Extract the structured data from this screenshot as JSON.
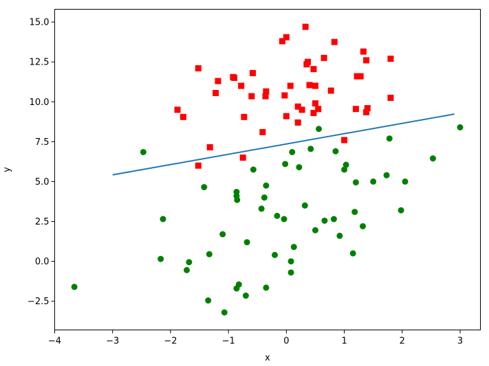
{
  "chart_data": {
    "type": "scatter",
    "title": "",
    "xlabel": "x",
    "ylabel": "y",
    "xlim": [
      -4,
      3.35
    ],
    "ylim": [
      -4.3,
      15.8
    ],
    "xticks": [
      -4,
      -3,
      -2,
      -1,
      0,
      1,
      2,
      3
    ],
    "yticks": [
      -2.5,
      0.0,
      2.5,
      5.0,
      7.5,
      10.0,
      12.5,
      15.0
    ],
    "ytick_labels": [
      "−2.5",
      "0.0",
      "2.5",
      "5.0",
      "7.5",
      "10.0",
      "12.5",
      "15.0"
    ],
    "xtick_labels": [
      "−4",
      "−3",
      "−2",
      "−1",
      "0",
      "1",
      "2",
      "3"
    ],
    "grid": false,
    "series": [
      {
        "marker": "square",
        "color": "#ff0000",
        "points": [
          [
            -1.52,
            12.1
          ],
          [
            -1.18,
            11.3
          ],
          [
            -1.22,
            10.55
          ],
          [
            -0.92,
            11.55
          ],
          [
            -0.9,
            11.5
          ],
          [
            -0.58,
            11.8
          ],
          [
            -0.78,
            11.0
          ],
          [
            -0.6,
            10.35
          ],
          [
            -0.35,
            10.65
          ],
          [
            -0.36,
            10.35
          ],
          [
            -1.88,
            9.5
          ],
          [
            -1.78,
            9.05
          ],
          [
            -0.73,
            9.05
          ],
          [
            -0.41,
            8.1
          ],
          [
            -1.32,
            7.15
          ],
          [
            -1.52,
            6.0
          ],
          [
            -0.75,
            6.5
          ],
          [
            -0.07,
            13.8
          ],
          [
            0.0,
            14.05
          ],
          [
            0.33,
            14.7
          ],
          [
            0.35,
            12.35
          ],
          [
            0.37,
            12.5
          ],
          [
            0.47,
            12.05
          ],
          [
            0.65,
            12.75
          ],
          [
            0.83,
            13.75
          ],
          [
            1.33,
            13.15
          ],
          [
            1.38,
            12.6
          ],
          [
            1.22,
            11.6
          ],
          [
            1.28,
            11.6
          ],
          [
            1.8,
            12.7
          ],
          [
            0.07,
            11.0
          ],
          [
            -0.03,
            10.4
          ],
          [
            0.4,
            11.05
          ],
          [
            0.5,
            11.0
          ],
          [
            0.77,
            10.7
          ],
          [
            0.2,
            9.7
          ],
          [
            0.27,
            9.5
          ],
          [
            0.5,
            9.9
          ],
          [
            0.55,
            9.55
          ],
          [
            0.47,
            9.3
          ],
          [
            0.0,
            9.1
          ],
          [
            0.2,
            8.7
          ],
          [
            1.2,
            9.55
          ],
          [
            1.38,
            9.35
          ],
          [
            1.4,
            9.6
          ],
          [
            1.8,
            10.25
          ],
          [
            1.0,
            7.6
          ]
        ]
      },
      {
        "marker": "circle",
        "color": "#008000",
        "points": [
          [
            -3.66,
            -1.6
          ],
          [
            -2.47,
            6.85
          ],
          [
            -2.13,
            2.65
          ],
          [
            -2.17,
            0.15
          ],
          [
            -1.68,
            -0.05
          ],
          [
            -1.72,
            -0.55
          ],
          [
            -1.42,
            4.65
          ],
          [
            -1.33,
            0.45
          ],
          [
            -1.35,
            -2.45
          ],
          [
            -1.07,
            -3.2
          ],
          [
            -1.1,
            1.7
          ],
          [
            -0.86,
            4.35
          ],
          [
            -0.86,
            4.1
          ],
          [
            -0.85,
            3.85
          ],
          [
            -0.82,
            -1.45
          ],
          [
            -0.86,
            -1.7
          ],
          [
            -0.7,
            -2.15
          ],
          [
            -0.68,
            1.2
          ],
          [
            -0.57,
            5.75
          ],
          [
            -0.43,
            3.3
          ],
          [
            -0.38,
            4.0
          ],
          [
            -0.35,
            4.75
          ],
          [
            -0.35,
            -1.65
          ],
          [
            -0.2,
            0.4
          ],
          [
            -0.16,
            2.85
          ],
          [
            -0.04,
            2.65
          ],
          [
            -0.02,
            6.1
          ],
          [
            0.1,
            6.85
          ],
          [
            0.08,
            0.0
          ],
          [
            0.08,
            -0.7
          ],
          [
            0.13,
            0.9
          ],
          [
            0.22,
            5.9
          ],
          [
            0.32,
            3.5
          ],
          [
            0.42,
            7.05
          ],
          [
            0.5,
            1.95
          ],
          [
            0.56,
            8.3
          ],
          [
            0.66,
            2.55
          ],
          [
            0.82,
            2.65
          ],
          [
            0.85,
            6.9
          ],
          [
            0.92,
            1.6
          ],
          [
            1.0,
            5.75
          ],
          [
            1.03,
            6.05
          ],
          [
            1.15,
            0.5
          ],
          [
            1.18,
            3.1
          ],
          [
            1.2,
            4.95
          ],
          [
            1.32,
            2.2
          ],
          [
            1.5,
            5.0
          ],
          [
            1.73,
            5.4
          ],
          [
            1.78,
            7.7
          ],
          [
            1.98,
            3.2
          ],
          [
            2.05,
            5.0
          ],
          [
            2.53,
            6.45
          ],
          [
            3.0,
            8.4
          ]
        ]
      }
    ],
    "lines": [
      {
        "color": "#1f77b4",
        "points": [
          [
            -3.0,
            5.42
          ],
          [
            2.9,
            9.23
          ]
        ]
      }
    ]
  }
}
